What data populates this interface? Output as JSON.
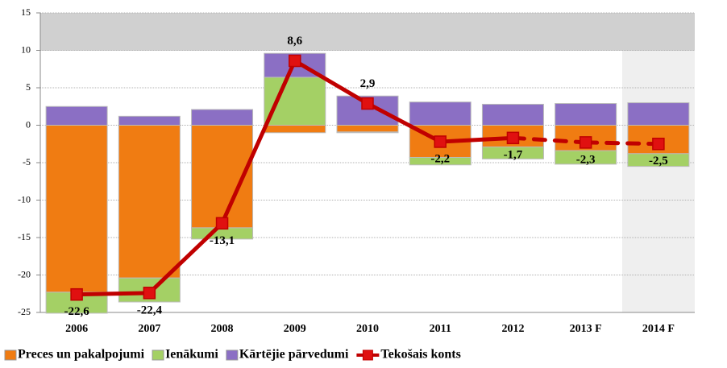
{
  "chart_data": {
    "type": "stacked_bar_line",
    "categories": [
      "2006",
      "2007",
      "2008",
      "2009",
      "2010",
      "2011",
      "2012",
      "2013 F",
      "2014 F"
    ],
    "series": [
      {
        "name": "Preces un pakalpojumi",
        "type": "bar",
        "color": "#f07c12",
        "values": [
          -22.3,
          -20.4,
          -13.7,
          -1.0,
          -0.9,
          -4.3,
          -2.9,
          -3.4,
          -3.8
        ]
      },
      {
        "name": "Ienākumi",
        "type": "bar",
        "color": "#a4d065",
        "values": [
          -2.8,
          -3.2,
          -1.5,
          6.4,
          -0.1,
          -1.0,
          -1.6,
          -1.8,
          -1.7
        ]
      },
      {
        "name": "Kārtējie pārvedumi",
        "type": "bar",
        "color": "#8b6fc4",
        "values": [
          2.5,
          1.2,
          2.1,
          3.2,
          3.9,
          3.1,
          2.8,
          2.9,
          3.0
        ]
      },
      {
        "name": "Tekošais konts",
        "type": "line",
        "color": "#c00000",
        "marker_color": "#e01010",
        "dash_from": "2012",
        "values": [
          -22.6,
          -22.4,
          -13.1,
          8.6,
          2.9,
          -2.2,
          -1.7,
          -2.3,
          -2.5
        ],
        "value_labels": [
          "-22,6",
          "-22,4",
          "-13,1",
          "8,6",
          "2,9",
          "-2,2",
          "-1,7",
          "-2,3",
          "-2,5"
        ]
      }
    ],
    "ylim": [
      -25,
      15
    ],
    "yticks": [
      -25,
      -20,
      -15,
      -10,
      -5,
      0,
      5,
      10,
      15
    ],
    "grid": true,
    "legend": "bottom"
  }
}
